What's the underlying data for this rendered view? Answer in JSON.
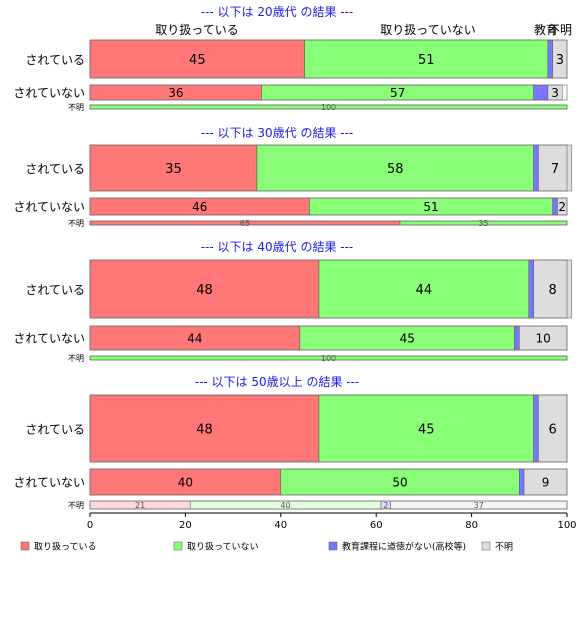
{
  "chart_data": {
    "type": "bar",
    "orientation": "horizontal",
    "stacked": true,
    "xlim": [
      0,
      100
    ],
    "x_ticks": [
      0,
      20,
      40,
      60,
      80,
      100
    ],
    "grid": false,
    "legend_position": "bottom",
    "column_headers": [
      "取り扱っている",
      "取り扱っていない",
      "教育",
      "不明"
    ],
    "series": [
      {
        "name": "取り扱っている",
        "color": "#ff7777"
      },
      {
        "name": "取り扱っていない",
        "color": "#88ff77"
      },
      {
        "name": "教育課程に道徳がない(高校等)",
        "color": "#7777ff"
      },
      {
        "name": "不明",
        "color": "#dddddd"
      }
    ],
    "groups": [
      {
        "title": "--- 以下は 20歳代 の結果 ---",
        "rows": [
          {
            "label": "されている",
            "values": [
              45,
              51,
              1,
              3
            ],
            "labels": [
              "45",
              "51",
              "1",
              "3"
            ],
            "size": "large"
          },
          {
            "label": "されていない",
            "values": [
              36,
              57,
              3,
              3
            ],
            "labels": [
              "36",
              "57",
              "3",
              "3"
            ],
            "size": "medium"
          },
          {
            "label": "不明",
            "values": [
              0,
              100,
              0,
              0
            ],
            "labels": [
              "",
              "100",
              "",
              ""
            ],
            "size": "small"
          }
        ]
      },
      {
        "title": "--- 以下は 30歳代 の結果 ---",
        "rows": [
          {
            "label": "されている",
            "values": [
              35,
              58,
              1,
              7
            ],
            "labels": [
              "35",
              "58",
              "1",
              "7"
            ],
            "size": "large"
          },
          {
            "label": "されていない",
            "values": [
              46,
              51,
              1,
              2
            ],
            "labels": [
              "46",
              "51",
              "1",
              "2"
            ],
            "size": "medium"
          },
          {
            "label": "不明",
            "values": [
              65,
              35,
              0,
              0
            ],
            "labels": [
              "65",
              "35",
              "",
              ""
            ],
            "size": "small"
          }
        ]
      },
      {
        "title": "--- 以下は 40歳代 の結果 ---",
        "rows": [
          {
            "label": "されている",
            "values": [
              48,
              44,
              1,
              8
            ],
            "labels": [
              "48",
              "44",
              "1",
              "8"
            ],
            "size": "large"
          },
          {
            "label": "されていない",
            "values": [
              44,
              45,
              1,
              10
            ],
            "labels": [
              "44",
              "45",
              "1",
              "10"
            ],
            "size": "medium"
          },
          {
            "label": "不明",
            "values": [
              0,
              100,
              0,
              0
            ],
            "labels": [
              "",
              "100",
              "",
              ""
            ],
            "size": "small"
          }
        ]
      },
      {
        "title": "--- 以下は 50歳以上 の結果 ---",
        "rows": [
          {
            "label": "されている",
            "values": [
              48,
              45,
              1,
              6
            ],
            "labels": [
              "48",
              "45",
              "",
              "6"
            ],
            "size": "large"
          },
          {
            "label": "されていない",
            "values": [
              40,
              50,
              1,
              9
            ],
            "labels": [
              "40",
              "50",
              "1",
              "9"
            ],
            "size": "medium"
          },
          {
            "label": "不明",
            "values": [
              21,
              40,
              2,
              37
            ],
            "labels": [
              "21",
              "40",
              "2",
              "37"
            ],
            "size": "small",
            "faded": true
          }
        ]
      }
    ]
  }
}
